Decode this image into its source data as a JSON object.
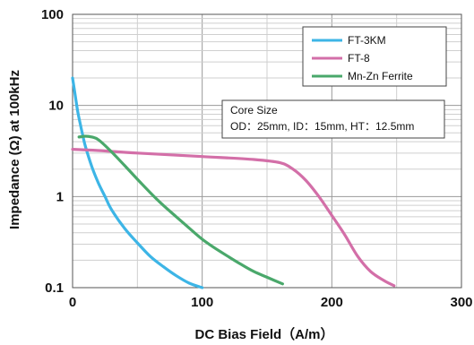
{
  "chart_data": {
    "type": "line",
    "title": "",
    "xlabel": "DC Bias Field（A/m）",
    "ylabel": "Impedance (Ω) at 100kHz",
    "xlim": [
      0,
      300
    ],
    "ylim": [
      0.1,
      100
    ],
    "yscale": "log",
    "grid": true,
    "legend_position": "top-right",
    "x_ticks": [
      "0",
      "100",
      "200",
      "300"
    ],
    "y_ticks": [
      "0.1",
      "1",
      "10",
      "100"
    ],
    "annotation": {
      "title": "Core Size",
      "text": "OD：25mm, ID：15mm, HT：12.5mm"
    },
    "series": [
      {
        "name": "FT-3KM",
        "color": "#3db5e6",
        "points": [
          [
            0,
            20
          ],
          [
            2,
            13
          ],
          [
            4,
            8.5
          ],
          [
            6,
            6.2
          ],
          [
            8,
            4.6
          ],
          [
            10,
            3.5
          ],
          [
            15,
            2.1
          ],
          [
            20,
            1.4
          ],
          [
            25,
            1.0
          ],
          [
            30,
            0.72
          ],
          [
            40,
            0.45
          ],
          [
            50,
            0.31
          ],
          [
            60,
            0.22
          ],
          [
            70,
            0.17
          ],
          [
            80,
            0.135
          ],
          [
            90,
            0.112
          ],
          [
            100,
            0.1
          ]
        ]
      },
      {
        "name": "FT-8",
        "color": "#d36fa8",
        "points": [
          [
            0,
            3.3
          ],
          [
            20,
            3.2
          ],
          [
            50,
            3.0
          ],
          [
            100,
            2.75
          ],
          [
            140,
            2.55
          ],
          [
            160,
            2.35
          ],
          [
            170,
            2.0
          ],
          [
            180,
            1.5
          ],
          [
            190,
            1.0
          ],
          [
            200,
            0.62
          ],
          [
            210,
            0.38
          ],
          [
            220,
            0.22
          ],
          [
            230,
            0.15
          ],
          [
            240,
            0.12
          ],
          [
            248,
            0.105
          ]
        ]
      },
      {
        "name": "Mn-Zn Ferrite",
        "color": "#4aa86b",
        "points": [
          [
            5,
            4.5
          ],
          [
            10,
            4.6
          ],
          [
            15,
            4.5
          ],
          [
            20,
            4.2
          ],
          [
            30,
            3.1
          ],
          [
            40,
            2.2
          ],
          [
            50,
            1.55
          ],
          [
            60,
            1.1
          ],
          [
            70,
            0.8
          ],
          [
            80,
            0.6
          ],
          [
            90,
            0.45
          ],
          [
            100,
            0.34
          ],
          [
            110,
            0.27
          ],
          [
            120,
            0.22
          ],
          [
            130,
            0.18
          ],
          [
            140,
            0.15
          ],
          [
            150,
            0.13
          ],
          [
            162,
            0.11
          ]
        ]
      }
    ]
  }
}
